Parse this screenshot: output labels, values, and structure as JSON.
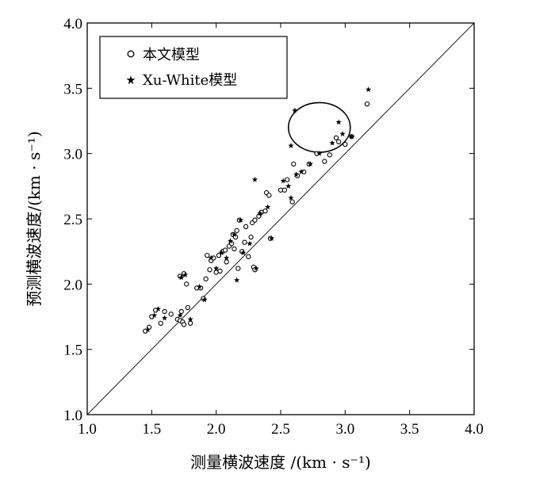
{
  "chart_data": {
    "type": "scatter",
    "title": "",
    "xlabel": "测量横波速度 /(km · s⁻¹)",
    "ylabel": "预测横波速度/(km · s⁻¹)",
    "xlim": [
      1.0,
      4.0
    ],
    "ylim": [
      1.0,
      4.0
    ],
    "x_ticks": [
      "1.0",
      "1.5",
      "2.0",
      "2.5",
      "3.0",
      "3.5",
      "4.0"
    ],
    "y_ticks": [
      "1.0",
      "1.5",
      "2.0",
      "2.5",
      "3.0",
      "3.5",
      "4.0"
    ],
    "grid": false,
    "legend_position": "top-left",
    "reference_line": {
      "from": [
        1.0,
        1.0
      ],
      "to": [
        4.0,
        4.0
      ]
    },
    "highlight_ellipse": {
      "cx": 2.8,
      "cy": 3.2,
      "rx": 0.24,
      "ry": 0.19
    },
    "series": [
      {
        "name": "本文模型",
        "marker": "circle",
        "points": [
          [
            1.45,
            1.64
          ],
          [
            1.48,
            1.67
          ],
          [
            1.5,
            1.75
          ],
          [
            1.53,
            1.8
          ],
          [
            1.57,
            1.7
          ],
          [
            1.6,
            1.79
          ],
          [
            1.65,
            1.77
          ],
          [
            1.7,
            1.73
          ],
          [
            1.72,
            1.72
          ],
          [
            1.73,
            1.79
          ],
          [
            1.74,
            1.71
          ],
          [
            1.75,
            1.69
          ],
          [
            1.78,
            1.82
          ],
          [
            1.8,
            1.7
          ],
          [
            1.72,
            2.06
          ],
          [
            1.75,
            2.08
          ],
          [
            1.77,
            2.0
          ],
          [
            1.85,
            1.97
          ],
          [
            1.88,
            1.97
          ],
          [
            1.9,
            1.89
          ],
          [
            1.92,
            2.04
          ],
          [
            1.93,
            2.22
          ],
          [
            1.95,
            2.11
          ],
          [
            1.96,
            2.18
          ],
          [
            1.98,
            2.2
          ],
          [
            2.0,
            2.09
          ],
          [
            2.02,
            2.22
          ],
          [
            2.03,
            2.1
          ],
          [
            2.05,
            2.25
          ],
          [
            2.07,
            2.26
          ],
          [
            2.08,
            2.17
          ],
          [
            2.1,
            2.29
          ],
          [
            2.12,
            2.31
          ],
          [
            2.13,
            2.38
          ],
          [
            2.14,
            2.27
          ],
          [
            2.15,
            2.36
          ],
          [
            2.16,
            2.41
          ],
          [
            2.18,
            2.49
          ],
          [
            2.17,
            2.12
          ],
          [
            2.2,
            2.25
          ],
          [
            2.22,
            2.32
          ],
          [
            2.23,
            2.44
          ],
          [
            2.25,
            2.21
          ],
          [
            2.27,
            2.36
          ],
          [
            2.28,
            2.47
          ],
          [
            2.3,
            2.49
          ],
          [
            2.29,
            2.13
          ],
          [
            2.3,
            2.11
          ],
          [
            2.33,
            2.52
          ],
          [
            2.35,
            2.55
          ],
          [
            2.38,
            2.56
          ],
          [
            2.39,
            2.7
          ],
          [
            2.41,
            2.68
          ],
          [
            2.42,
            2.35
          ],
          [
            2.5,
            2.72
          ],
          [
            2.53,
            2.72
          ],
          [
            2.55,
            2.8
          ],
          [
            2.59,
            2.63
          ],
          [
            2.6,
            2.92
          ],
          [
            2.63,
            2.83
          ],
          [
            2.68,
            2.86
          ],
          [
            2.72,
            2.92
          ],
          [
            2.78,
            3.0
          ],
          [
            2.84,
            2.94
          ],
          [
            2.88,
            2.99
          ],
          [
            2.93,
            3.12
          ],
          [
            2.95,
            3.09
          ],
          [
            3.0,
            3.07
          ],
          [
            3.05,
            3.13
          ],
          [
            3.17,
            3.38
          ]
        ]
      },
      {
        "name": "Xu-White模型",
        "marker": "star",
        "points": [
          [
            1.47,
            1.65
          ],
          [
            1.52,
            1.76
          ],
          [
            1.55,
            1.81
          ],
          [
            1.6,
            1.74
          ],
          [
            1.72,
            1.76
          ],
          [
            1.73,
            2.05
          ],
          [
            1.76,
            2.07
          ],
          [
            1.8,
            1.73
          ],
          [
            1.87,
            1.98
          ],
          [
            1.91,
            1.88
          ],
          [
            1.96,
            2.2
          ],
          [
            2.0,
            2.12
          ],
          [
            2.04,
            2.24
          ],
          [
            2.08,
            2.2
          ],
          [
            2.11,
            2.33
          ],
          [
            2.14,
            2.38
          ],
          [
            2.16,
            2.03
          ],
          [
            2.19,
            2.49
          ],
          [
            2.21,
            2.24
          ],
          [
            2.26,
            2.31
          ],
          [
            2.3,
            2.8
          ],
          [
            2.31,
            2.12
          ],
          [
            2.34,
            2.54
          ],
          [
            2.4,
            2.59
          ],
          [
            2.43,
            2.35
          ],
          [
            2.52,
            2.79
          ],
          [
            2.56,
            2.75
          ],
          [
            2.58,
            2.66
          ],
          [
            2.58,
            3.06
          ],
          [
            2.61,
            3.33
          ],
          [
            2.62,
            2.84
          ],
          [
            2.66,
            2.86
          ],
          [
            2.73,
            2.92
          ],
          [
            2.8,
            3.0
          ],
          [
            2.9,
            3.08
          ],
          [
            2.95,
            3.24
          ],
          [
            2.98,
            3.15
          ],
          [
            3.05,
            3.13
          ],
          [
            3.18,
            3.49
          ]
        ]
      }
    ]
  }
}
